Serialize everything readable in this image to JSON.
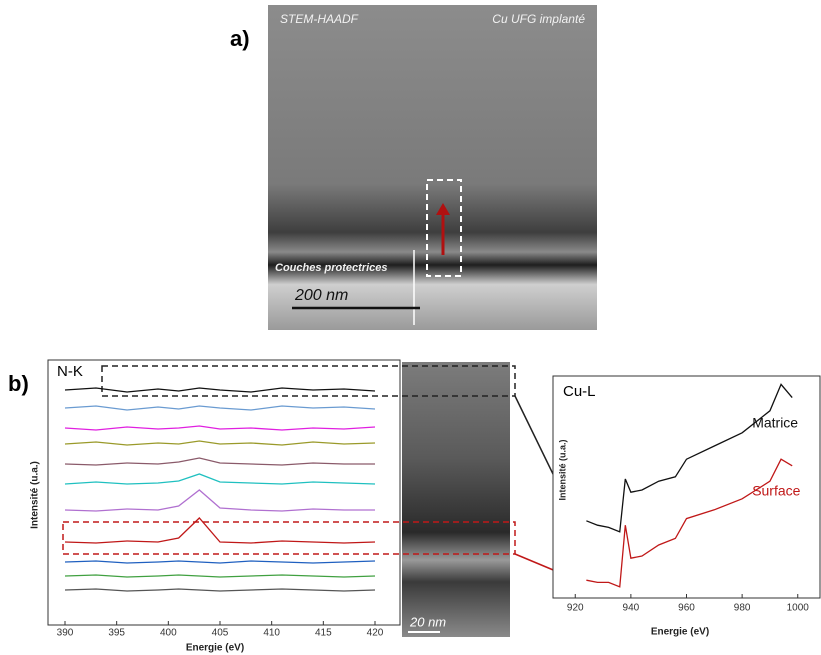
{
  "panel_a": {
    "label": "a)",
    "image_labels": [
      "STEM-HAADF",
      "Cu UFG implanté",
      "Couches protectrices"
    ],
    "scale_bar": "200 nm"
  },
  "panel_b": {
    "label": "b)",
    "scale_bar": "20 nm"
  },
  "chart_data": [
    {
      "type": "line",
      "title": "N-K",
      "x_label": "Energie (eV)",
      "y_label": "Intensité (u.a.)",
      "x": [
        390,
        393,
        396,
        399,
        401,
        403,
        405,
        408,
        411,
        414,
        417,
        420
      ],
      "xlim": [
        390,
        420
      ],
      "xticks": [
        390,
        395,
        400,
        405,
        410,
        415,
        420
      ],
      "ylim": [
        0,
        12
      ],
      "series": [
        {
          "color": "#111111",
          "values": [
            11,
            11.1,
            10.9,
            11.05,
            10.95,
            11.1,
            11,
            10.9,
            11.1,
            11,
            11.05,
            10.95
          ]
        },
        {
          "color": "#6a9bd1",
          "values": [
            10.1,
            10.2,
            10,
            10.15,
            10.05,
            10.2,
            10.1,
            10,
            10.2,
            10.1,
            10.15,
            10.05
          ]
        },
        {
          "color": "#e020e0",
          "values": [
            9.1,
            9,
            9.15,
            9.05,
            9.1,
            9.2,
            9.05,
            9.1,
            9,
            9.1,
            9.05,
            9.15
          ]
        },
        {
          "color": "#9a9a2a",
          "values": [
            8.3,
            8.4,
            8.25,
            8.35,
            8.3,
            8.45,
            8.3,
            8.35,
            8.25,
            8.4,
            8.3,
            8.35
          ]
        },
        {
          "color": "#8a5a6a",
          "values": [
            7.3,
            7.25,
            7.35,
            7.3,
            7.4,
            7.6,
            7.35,
            7.3,
            7.25,
            7.35,
            7.3,
            7.3
          ]
        },
        {
          "color": "#20c0c0",
          "values": [
            6.3,
            6.4,
            6.3,
            6.35,
            6.45,
            6.8,
            6.4,
            6.35,
            6.3,
            6.4,
            6.35,
            6.3
          ]
        },
        {
          "color": "#b070d0",
          "values": [
            5,
            4.95,
            5.05,
            5,
            5.2,
            6,
            5.1,
            5,
            4.95,
            5.05,
            5,
            5
          ]
        },
        {
          "color": "#c01818",
          "values": [
            3.4,
            3.35,
            3.45,
            3.4,
            3.6,
            4.6,
            3.4,
            3.35,
            3.45,
            3.4,
            3.35,
            3.4
          ]
        },
        {
          "color": "#2060c0",
          "values": [
            2.4,
            2.45,
            2.35,
            2.4,
            2.45,
            2.4,
            2.35,
            2.45,
            2.4,
            2.35,
            2.4,
            2.45
          ]
        },
        {
          "color": "#40a040",
          "values": [
            1.7,
            1.75,
            1.65,
            1.7,
            1.75,
            1.7,
            1.65,
            1.7,
            1.75,
            1.7,
            1.65,
            1.7
          ]
        },
        {
          "color": "#555555",
          "values": [
            1,
            1.05,
            0.95,
            1,
            1.05,
            1,
            0.95,
            1,
            1.05,
            1,
            0.95,
            1
          ]
        }
      ]
    },
    {
      "type": "line",
      "title": "Cu-L",
      "x_label": "Energie (eV)",
      "y_label": "Intensité (u.a.)",
      "x": [
        924,
        928,
        932,
        936,
        938,
        940,
        944,
        950,
        956,
        960,
        970,
        980,
        990,
        994,
        998
      ],
      "xlim": [
        912,
        1008
      ],
      "xticks": [
        920,
        940,
        960,
        980,
        1000
      ],
      "ylim": [
        0,
        10
      ],
      "series": [
        {
          "name": "Matrice",
          "color": "#111111",
          "values": [
            3.6,
            3.4,
            3.3,
            3.1,
            5.5,
            4.9,
            5,
            5.4,
            5.6,
            6.4,
            7,
            7.6,
            8.6,
            9.8,
            9.2
          ]
        },
        {
          "name": "Surface",
          "color": "#c01818",
          "values": [
            0.9,
            0.8,
            0.8,
            0.6,
            3.4,
            1.9,
            2,
            2.5,
            2.8,
            3.7,
            4.1,
            4.6,
            5.4,
            6.4,
            6.1
          ]
        }
      ]
    }
  ]
}
